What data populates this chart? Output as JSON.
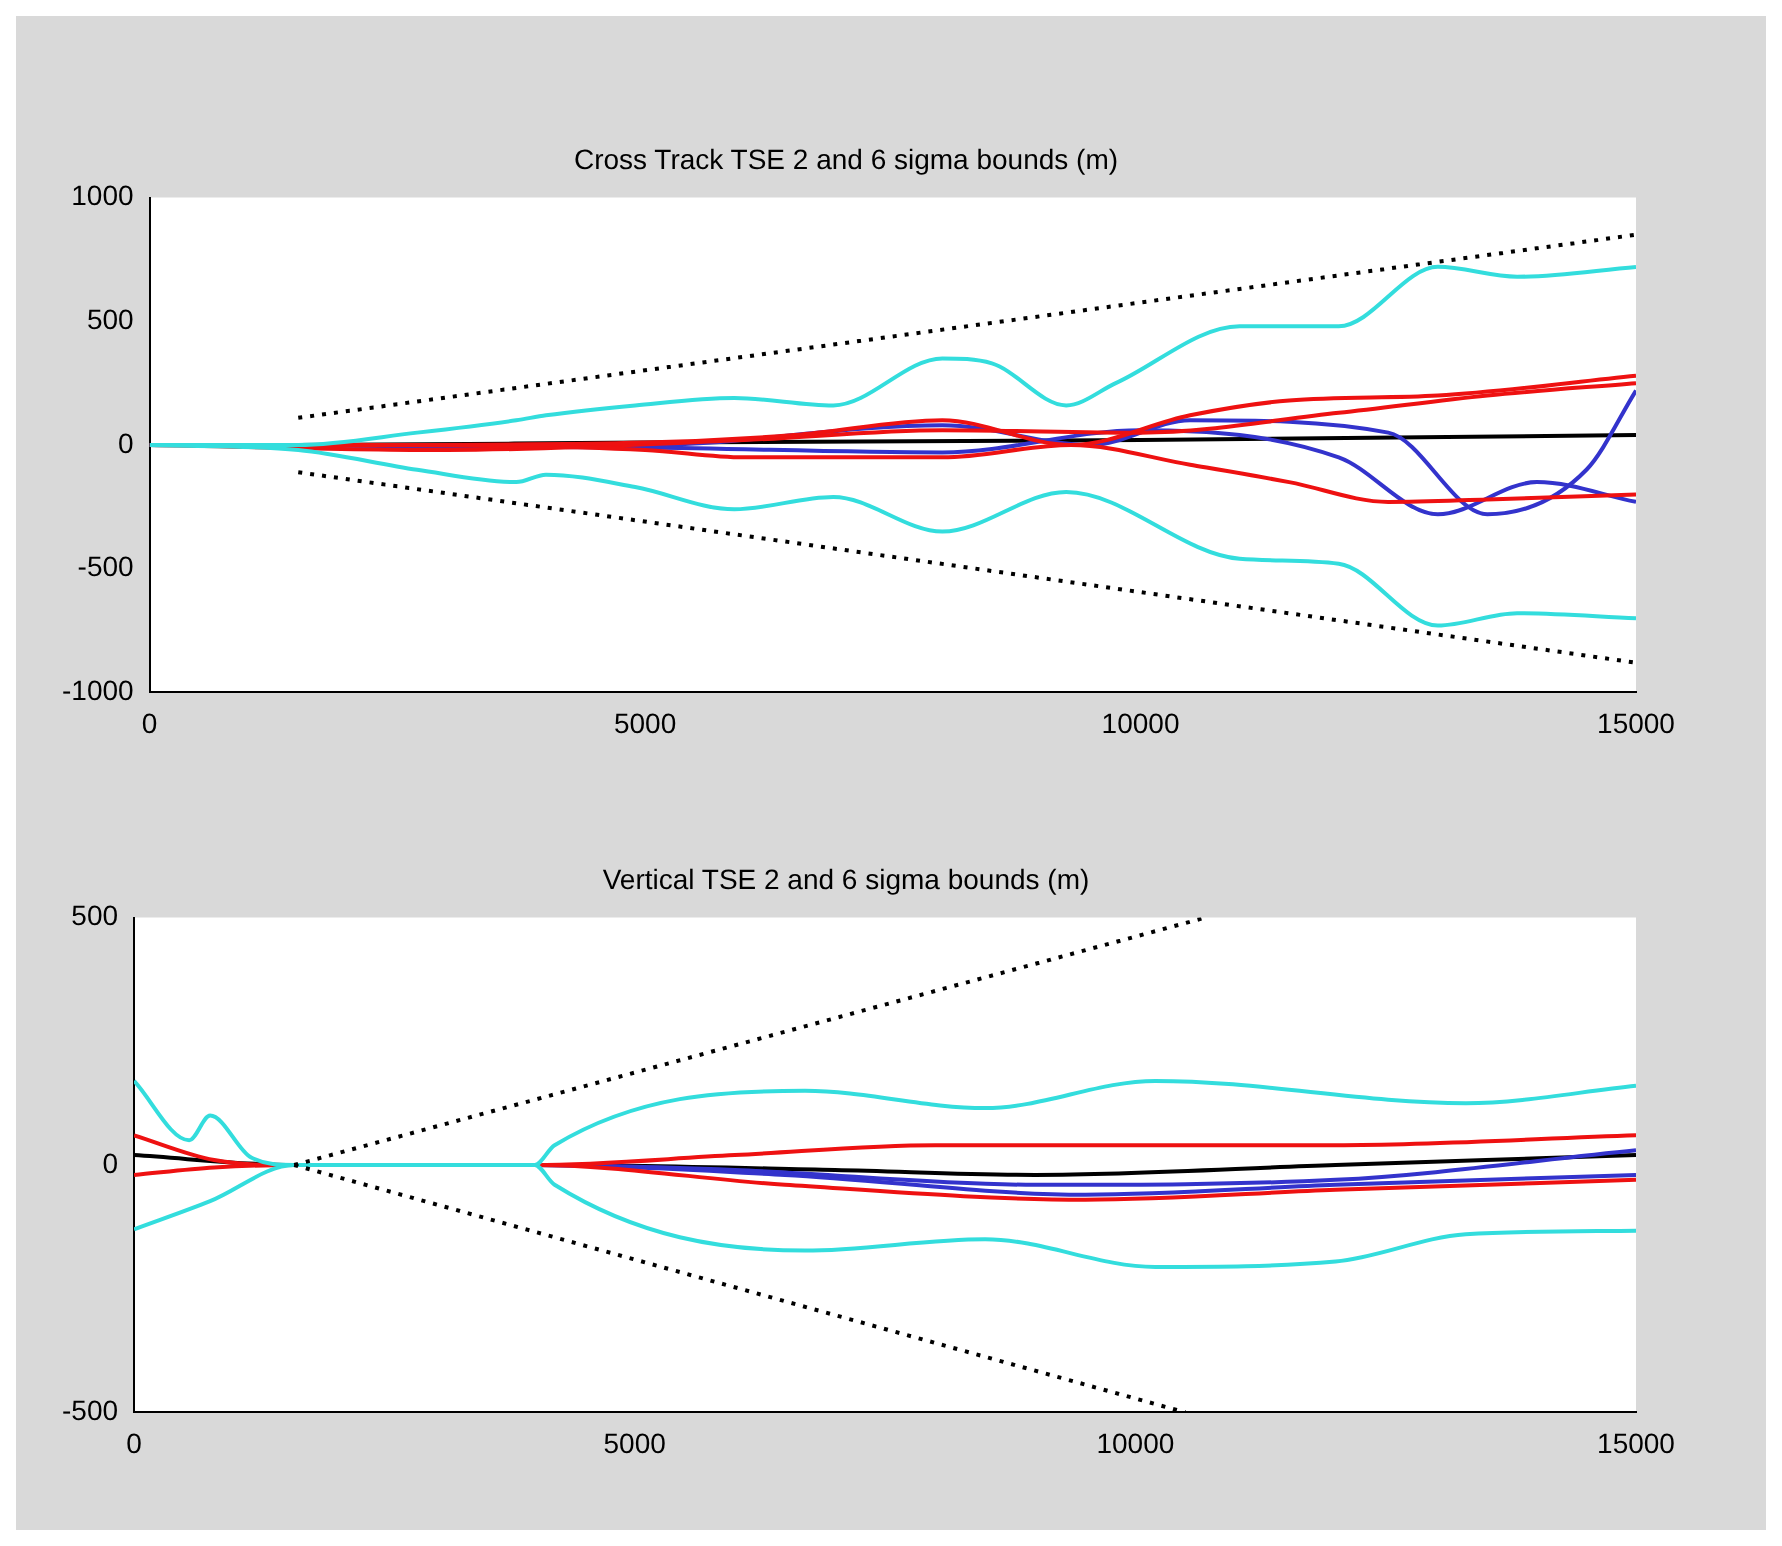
{
  "chart_data": [
    {
      "type": "line",
      "title": "Cross Track TSE 2 and 6 sigma bounds (m)",
      "xlim": [
        0,
        15000
      ],
      "xticks": [
        0,
        5000,
        10000,
        15000
      ],
      "ylim": [
        -1000,
        1000
      ],
      "yticks": [
        -1000,
        -500,
        0,
        500,
        1000
      ],
      "grid": false,
      "legend": false,
      "marker": "none",
      "series": [
        {
          "color": "#000000",
          "line_style": "dotted",
          "x": [
            1500,
            15000
          ],
          "values": [
            110,
            850
          ]
        },
        {
          "color": "#000000",
          "line_style": "dotted",
          "x": [
            1500,
            15000
          ],
          "values": [
            -110,
            -880
          ]
        },
        {
          "color": "#33dddd",
          "x": [
            0,
            1500,
            2700,
            3700,
            4000,
            4900,
            5900,
            6900,
            8000,
            8500,
            9250,
            9750,
            11000,
            12000,
            13000,
            13800,
            15000
          ],
          "values": [
            0,
            0,
            50,
            100,
            120,
            160,
            190,
            160,
            350,
            330,
            160,
            250,
            480,
            480,
            720,
            680,
            720
          ]
        },
        {
          "color": "#33dddd",
          "x": [
            0,
            1500,
            2700,
            3700,
            4000,
            4900,
            5900,
            6900,
            8000,
            9250,
            11000,
            12000,
            13000,
            13800,
            15000
          ],
          "values": [
            0,
            -20,
            -100,
            -150,
            -120,
            -170,
            -260,
            -210,
            -350,
            -190,
            -460,
            -480,
            -730,
            -680,
            -700
          ]
        },
        {
          "color": "#ee1111",
          "x": [
            0,
            2000,
            5000,
            6500,
            8000,
            9300,
            10500,
            11500,
            13000,
            15000
          ],
          "values": [
            0,
            0,
            10,
            40,
            100,
            0,
            120,
            180,
            200,
            280
          ]
        },
        {
          "color": "#ee1111",
          "x": [
            0,
            2000,
            5000,
            6000,
            8000,
            9300,
            10500,
            11500,
            12500,
            13500,
            15000
          ],
          "values": [
            0,
            0,
            -20,
            -50,
            -50,
            0,
            -80,
            -150,
            -230,
            -220,
            -200
          ]
        },
        {
          "color": "#ee1111",
          "x": [
            0,
            3000,
            6000,
            8000,
            10000,
            12000,
            13500,
            15000
          ],
          "values": [
            0,
            -20,
            20,
            60,
            50,
            130,
            200,
            250
          ]
        },
        {
          "color": "#3333cc",
          "x": [
            0,
            5000,
            8000,
            9500,
            10500,
            12500,
            13500,
            14500,
            15000
          ],
          "values": [
            0,
            0,
            80,
            0,
            100,
            50,
            -280,
            -100,
            220
          ]
        },
        {
          "color": "#3333cc",
          "x": [
            0,
            5000,
            8000,
            10000,
            12000,
            13000,
            14000,
            15000
          ],
          "values": [
            0,
            -10,
            -30,
            60,
            -50,
            -280,
            -150,
            -230
          ]
        },
        {
          "color": "#000000",
          "x": [
            0,
            1500,
            5000,
            10000,
            15000
          ],
          "values": [
            0,
            0,
            10,
            20,
            40
          ]
        }
      ]
    },
    {
      "type": "line",
      "title": "Vertical TSE 2 and 6 sigma bounds (m)",
      "xlim": [
        0,
        15000
      ],
      "xticks": [
        0,
        5000,
        10000,
        15000
      ],
      "ylim": [
        -500,
        500
      ],
      "yticks": [
        -500,
        0,
        500
      ],
      "grid": false,
      "legend": false,
      "marker": "none",
      "series": [
        {
          "color": "#000000",
          "line_style": "dotted",
          "x": [
            1600,
            10700
          ],
          "values": [
            0,
            500
          ]
        },
        {
          "color": "#000000",
          "line_style": "dotted",
          "x": [
            1600,
            10500
          ],
          "values": [
            0,
            -500
          ]
        },
        {
          "color": "#33dddd",
          "x": [
            0,
            550,
            760,
            1170,
            1600,
            4000,
            4200,
            6700,
            8500,
            10200,
            13300,
            15000
          ],
          "values": [
            170,
            50,
            100,
            15,
            0,
            0,
            40,
            150,
            115,
            170,
            125,
            160
          ]
        },
        {
          "color": "#33dddd",
          "x": [
            0,
            760,
            1600,
            4000,
            4200,
            6700,
            8500,
            10200,
            12000,
            13300,
            15000
          ],
          "values": [
            -130,
            -73,
            0,
            0,
            -40,
            -173,
            -150,
            -206,
            -195,
            -140,
            -133
          ]
        },
        {
          "color": "#ee1111",
          "x": [
            0,
            800,
            1600,
            4000,
            6000,
            8000,
            12000,
            15000
          ],
          "values": [
            60,
            10,
            0,
            0,
            20,
            40,
            40,
            60
          ]
        },
        {
          "color": "#ee1111",
          "x": [
            0,
            800,
            1600,
            4000,
            6500,
            9500,
            12000,
            15000
          ],
          "values": [
            -20,
            -5,
            0,
            0,
            -40,
            -70,
            -50,
            -30
          ]
        },
        {
          "color": "#3333cc",
          "x": [
            1600,
            4000,
            6000,
            9000,
            12000,
            15000
          ],
          "values": [
            0,
            0,
            -10,
            -40,
            -30,
            30
          ]
        },
        {
          "color": "#3333cc",
          "x": [
            1600,
            4000,
            6500,
            9500,
            12000,
            15000
          ],
          "values": [
            0,
            0,
            -20,
            -60,
            -40,
            -20
          ]
        },
        {
          "color": "#000000",
          "x": [
            0,
            1600,
            4000,
            7000,
            9000,
            12000,
            15000
          ],
          "values": [
            20,
            0,
            0,
            -10,
            -20,
            0,
            20
          ]
        }
      ]
    }
  ]
}
